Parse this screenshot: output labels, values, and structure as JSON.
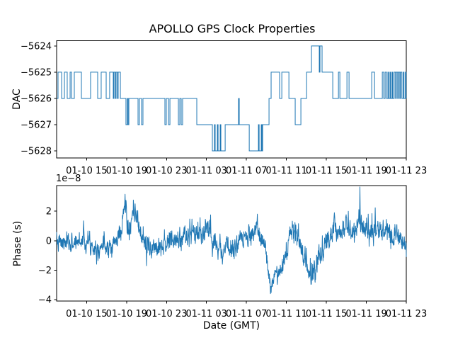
{
  "figure": {
    "title": "APOLLO GPS Clock Properties",
    "background_color": "#ffffff",
    "line_color": "#1f77b4",
    "axis_color": "#000000",
    "tick_label_color": "#000000"
  },
  "chart_data": [
    {
      "type": "line",
      "subtype": "step",
      "name": "dac-vs-time",
      "ylabel": "DAC",
      "xlabel": "",
      "legend": "none",
      "grid": false,
      "y_axis": {
        "tick_values": [
          -5624,
          -5625,
          -5626,
          -5627,
          -5628
        ],
        "tick_labels": [
          "−5624",
          "−5625",
          "−5626",
          "−5627",
          "−5628"
        ],
        "range": [
          -5628.27,
          -5623.8
        ]
      },
      "x_axis": {
        "range_hours": [
          0,
          35
        ],
        "tick_hours": [
          3,
          7,
          11,
          15,
          19,
          23,
          27,
          31,
          35
        ],
        "tick_labels": [
          "01-10 15",
          "01-10 19",
          "01-10 23",
          "01-11 03",
          "01-11 07",
          "01-11 11",
          "01-11 15",
          "01-11 19",
          "01-11 23"
        ]
      },
      "steps_time_value": [
        [
          0,
          -5626
        ],
        [
          0.14,
          -5625
        ],
        [
          0.5,
          -5626
        ],
        [
          0.78,
          -5625
        ],
        [
          1.06,
          -5626
        ],
        [
          1.35,
          -5625
        ],
        [
          1.49,
          -5626
        ],
        [
          1.77,
          -5625
        ],
        [
          2.48,
          -5626
        ],
        [
          3.4,
          -5625
        ],
        [
          4.11,
          -5626
        ],
        [
          4.46,
          -5625
        ],
        [
          4.96,
          -5626
        ],
        [
          5.31,
          -5625
        ],
        [
          5.67,
          -5626
        ],
        [
          5.74,
          -5625
        ],
        [
          5.88,
          -5626
        ],
        [
          5.95,
          -5625
        ],
        [
          6.09,
          -5626
        ],
        [
          6.16,
          -5625
        ],
        [
          6.38,
          -5626
        ],
        [
          6.94,
          -5627
        ],
        [
          7.08,
          -5626
        ],
        [
          7.15,
          -5627
        ],
        [
          7.23,
          -5626
        ],
        [
          8.15,
          -5627
        ],
        [
          8.29,
          -5626
        ],
        [
          8.5,
          -5627
        ],
        [
          8.64,
          -5626
        ],
        [
          10.84,
          -5627
        ],
        [
          10.98,
          -5626
        ],
        [
          11.2,
          -5627
        ],
        [
          11.34,
          -5626
        ],
        [
          12.19,
          -5627
        ],
        [
          12.33,
          -5626
        ],
        [
          12.47,
          -5627
        ],
        [
          12.61,
          -5626
        ],
        [
          14.03,
          -5627
        ],
        [
          15.59,
          -5628
        ],
        [
          15.8,
          -5627
        ],
        [
          15.87,
          -5628
        ],
        [
          16.09,
          -5627
        ],
        [
          16.16,
          -5628
        ],
        [
          16.37,
          -5627
        ],
        [
          16.44,
          -5628
        ],
        [
          16.87,
          -5627
        ],
        [
          18.21,
          -5626
        ],
        [
          18.28,
          -5627
        ],
        [
          19.28,
          -5628
        ],
        [
          20.2,
          -5627
        ],
        [
          20.27,
          -5628
        ],
        [
          20.48,
          -5627
        ],
        [
          20.55,
          -5628
        ],
        [
          20.62,
          -5627
        ],
        [
          21.26,
          -5626
        ],
        [
          21.47,
          -5625
        ],
        [
          22.32,
          -5626
        ],
        [
          22.54,
          -5625
        ],
        [
          23.25,
          -5626
        ],
        [
          23.88,
          -5627
        ],
        [
          24.45,
          -5626
        ],
        [
          25.02,
          -5625
        ],
        [
          25.51,
          -5624
        ],
        [
          26.29,
          -5625
        ],
        [
          26.36,
          -5624
        ],
        [
          26.57,
          -5625
        ],
        [
          27.64,
          -5626
        ],
        [
          28.21,
          -5625
        ],
        [
          28.35,
          -5626
        ],
        [
          29.06,
          -5625
        ],
        [
          29.27,
          -5626
        ],
        [
          31.54,
          -5625
        ],
        [
          31.82,
          -5626
        ],
        [
          32.6,
          -5625
        ],
        [
          32.74,
          -5626
        ],
        [
          32.88,
          -5625
        ],
        [
          33.02,
          -5626
        ],
        [
          33.16,
          -5625
        ],
        [
          33.23,
          -5626
        ],
        [
          33.37,
          -5625
        ],
        [
          33.44,
          -5626
        ],
        [
          33.58,
          -5625
        ],
        [
          33.65,
          -5626
        ],
        [
          33.79,
          -5625
        ],
        [
          33.93,
          -5626
        ],
        [
          34,
          -5625
        ],
        [
          34.14,
          -5626
        ],
        [
          34.21,
          -5625
        ],
        [
          34.35,
          -5626
        ],
        [
          34.42,
          -5625
        ],
        [
          34.56,
          -5626
        ],
        [
          34.7,
          -5625
        ],
        [
          34.77,
          -5626
        ],
        [
          34.91,
          -5625
        ],
        [
          34.98,
          -5626
        ]
      ]
    },
    {
      "type": "line",
      "subtype": "noisy-timeseries",
      "name": "phase-vs-time",
      "ylabel": "Phase (s)",
      "xlabel": "Date (GMT)",
      "offset_label": "1e−8",
      "legend": "none",
      "grid": false,
      "y_axis": {
        "tick_values": [
          2,
          0,
          -2,
          -4
        ],
        "tick_labels": [
          "2",
          "0",
          "−2",
          "−4"
        ],
        "range": [
          -4.1,
          3.74
        ],
        "unit_scale": "1e-8"
      },
      "x_axis": {
        "range_hours": [
          0,
          35
        ],
        "tick_hours": [
          3,
          7,
          11,
          15,
          19,
          23,
          27,
          31,
          35
        ],
        "tick_labels": [
          "01-10 15",
          "01-10 19",
          "01-10 23",
          "01-11 03",
          "01-11 07",
          "01-11 11",
          "01-11 15",
          "01-11 19",
          "01-11 23"
        ]
      },
      "envelope_mean_time_value": [
        [
          0,
          -0.15
        ],
        [
          1.5,
          -0.2
        ],
        [
          2.7,
          0.1
        ],
        [
          3.5,
          -0.25
        ],
        [
          4,
          -0.45
        ],
        [
          4.5,
          -0.3
        ],
        [
          5.5,
          -0.25
        ],
        [
          6,
          -0.05
        ],
        [
          6.5,
          0.8
        ],
        [
          6.85,
          2.6
        ],
        [
          7.2,
          0.5
        ],
        [
          7.85,
          1.9
        ],
        [
          8.3,
          0.7
        ],
        [
          8.9,
          -0.2
        ],
        [
          9.3,
          -0.6
        ],
        [
          9.8,
          -0.35
        ],
        [
          10.5,
          -0.25
        ],
        [
          11.3,
          -0.05
        ],
        [
          12,
          0
        ],
        [
          12.8,
          0.3
        ],
        [
          13.5,
          0.55
        ],
        [
          14.2,
          0.45
        ],
        [
          14.9,
          0.55
        ],
        [
          15.4,
          0.7
        ],
        [
          15.9,
          -0.1
        ],
        [
          16.4,
          -0.55
        ],
        [
          17,
          -0.45
        ],
        [
          17.6,
          -0.55
        ],
        [
          18.2,
          -0.2
        ],
        [
          18.8,
          0
        ],
        [
          19.4,
          0.35
        ],
        [
          20,
          0.55
        ],
        [
          20.5,
          0.3
        ],
        [
          20.9,
          -0.4
        ],
        [
          21.1,
          -1.8
        ],
        [
          21.45,
          -3.2
        ],
        [
          21.7,
          -2.6
        ],
        [
          21.9,
          -2
        ],
        [
          22.15,
          -2.2
        ],
        [
          22.5,
          -1.6
        ],
        [
          22.9,
          -0.9
        ],
        [
          23.3,
          -0.1
        ],
        [
          23.6,
          0.8
        ],
        [
          23.9,
          0.4
        ],
        [
          24.3,
          -0.2
        ],
        [
          24.7,
          -0.8
        ],
        [
          25.1,
          -1.6
        ],
        [
          25.5,
          -2.4
        ],
        [
          25.8,
          -1.9
        ],
        [
          26.2,
          -1.3
        ],
        [
          26.6,
          -0.6
        ],
        [
          27,
          -0.1
        ],
        [
          27.4,
          0.4
        ],
        [
          27.8,
          1
        ],
        [
          28.2,
          0.5
        ],
        [
          28.6,
          0.7
        ],
        [
          29,
          0.9
        ],
        [
          29.5,
          0.6
        ],
        [
          29.9,
          0.8
        ],
        [
          30.3,
          1.6
        ],
        [
          30.6,
          0.9
        ],
        [
          31,
          0.8
        ],
        [
          31.5,
          0.6
        ],
        [
          32,
          0.7
        ],
        [
          32.5,
          0.5
        ],
        [
          33,
          0.6
        ],
        [
          33.5,
          0.4
        ],
        [
          34,
          0.2
        ],
        [
          34.5,
          0.1
        ],
        [
          35,
          -0.4
        ]
      ],
      "noise_sd_time_value": [
        [
          0,
          0.3
        ],
        [
          6,
          0.35
        ],
        [
          7.5,
          0.4
        ],
        [
          10,
          0.35
        ],
        [
          14,
          0.4
        ],
        [
          18,
          0.35
        ],
        [
          20,
          0.35
        ],
        [
          21.5,
          0.3
        ],
        [
          24,
          0.4
        ],
        [
          27,
          0.4
        ],
        [
          29,
          0.45
        ],
        [
          31,
          0.4
        ],
        [
          33,
          0.4
        ],
        [
          35,
          0.3
        ]
      ],
      "spikes_time_value": [
        [
          2.7,
          1.35
        ],
        [
          4,
          -1.6
        ],
        [
          6.85,
          3.15
        ],
        [
          7.85,
          2.5
        ],
        [
          9,
          -1.7
        ],
        [
          15.4,
          1.75
        ],
        [
          16.6,
          -1.6
        ],
        [
          20.1,
          1.8
        ],
        [
          21.4,
          -3.6
        ],
        [
          25.5,
          -2.95
        ],
        [
          27.8,
          1.9
        ],
        [
          29.2,
          2
        ],
        [
          30.35,
          3.65
        ],
        [
          31.2,
          1.8
        ]
      ],
      "noise_seed": 7,
      "n_points": 1600
    }
  ]
}
